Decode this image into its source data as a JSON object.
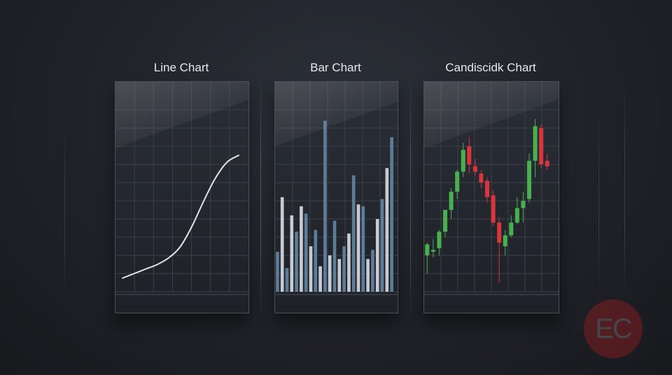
{
  "brand": {
    "logo_text": "EC"
  },
  "chart_data": [
    {
      "type": "line",
      "title": "Line Chart",
      "x": [
        0,
        1,
        2,
        3,
        4,
        5,
        6,
        7,
        8,
        9,
        10
      ],
      "y": [
        12,
        16,
        20,
        24,
        30,
        40,
        58,
        80,
        100,
        114,
        120
      ],
      "ylim": [
        0,
        160
      ],
      "grid": true,
      "color": "#e2e4e8"
    },
    {
      "type": "bar",
      "title": "Bar Chart",
      "values": [
        22,
        52,
        13,
        42,
        33,
        47,
        43,
        25,
        34,
        14,
        94,
        20,
        39,
        18,
        25,
        32,
        64,
        48,
        47,
        18,
        23,
        40,
        51,
        68,
        85
      ],
      "ylim": [
        0,
        100
      ],
      "grid": true,
      "colors": [
        "#5d7c97",
        "#c8ccd2"
      ]
    },
    {
      "type": "candlestick",
      "title": "Candiscidk Chart",
      "ohlc": [
        [
          20,
          26,
          10,
          27
        ],
        [
          22,
          23,
          19,
          29
        ],
        [
          24,
          33,
          20,
          34
        ],
        [
          33,
          45,
          30,
          45
        ],
        [
          45,
          55,
          40,
          57
        ],
        [
          55,
          66,
          51,
          67
        ],
        [
          66,
          78,
          63,
          82
        ],
        [
          80,
          70,
          65,
          85
        ],
        [
          69,
          66,
          64,
          73
        ],
        [
          65,
          60,
          57,
          67
        ],
        [
          61,
          52,
          49,
          63
        ],
        [
          53,
          38,
          36,
          56
        ],
        [
          38,
          27,
          5,
          41
        ],
        [
          25,
          31,
          20,
          34
        ],
        [
          31,
          38,
          30,
          42
        ],
        [
          38,
          46,
          37,
          52
        ],
        [
          46,
          50,
          38,
          55
        ],
        [
          51,
          72,
          49,
          76
        ],
        [
          72,
          91,
          63,
          95
        ],
        [
          90,
          70,
          68,
          92
        ],
        [
          72,
          69,
          67,
          76
        ]
      ],
      "ylim": [
        0,
        100
      ],
      "grid": true,
      "up_color": "#49b04f",
      "down_color": "#d9353c"
    }
  ]
}
